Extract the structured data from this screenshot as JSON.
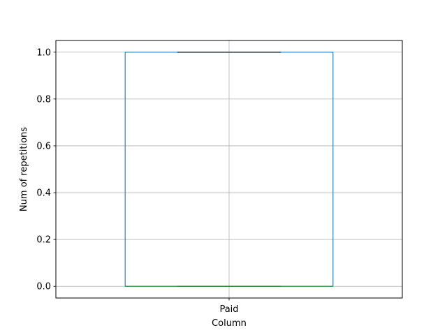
{
  "chart_data": {
    "type": "box",
    "title": "",
    "xlabel": "Column",
    "ylabel": "Num of repetitions",
    "categories": [
      "Paid"
    ],
    "boxes": [
      {
        "name": "Paid",
        "whisker_low": 0.0,
        "q1": 0.0,
        "median": 0.0,
        "q3": 1.0,
        "whisker_high": 1.0
      }
    ],
    "ylim": [
      -0.05,
      1.05
    ],
    "yticks": [
      0.0,
      0.2,
      0.4,
      0.6,
      0.8,
      1.0
    ],
    "ytick_labels": [
      "0.0",
      "0.2",
      "0.4",
      "0.6",
      "0.8",
      "1.0"
    ],
    "grid": true,
    "colors": {
      "box": "#1f77b4",
      "median": "#2ca02c",
      "whisker": "#000000",
      "grid": "#b0b0b0",
      "axes": "#000000"
    }
  }
}
